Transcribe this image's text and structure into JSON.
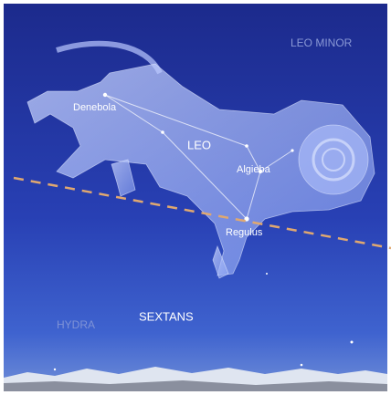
{
  "constellations": [
    "LEO MINOR",
    "LEO",
    "SEXTANS",
    "HYDRA"
  ],
  "stars": [
    "Denebola",
    "Algieba",
    "Regulus"
  ]
}
